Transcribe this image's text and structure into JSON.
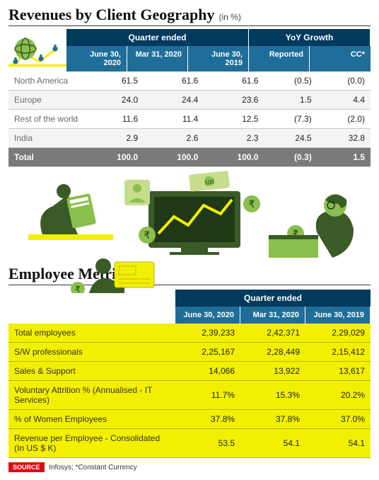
{
  "revenues": {
    "title": "Revenues by Client Geography",
    "unit": "(in %)",
    "header_group_quarter": "Quarter ended",
    "header_group_yoy": "YoY Growth",
    "cols": [
      "June 30, 2020",
      "Mar 31, 2020",
      "June 30, 2019",
      "Reported",
      "CC*"
    ],
    "rows": [
      {
        "label": "North America",
        "vals": [
          "61.5",
          "61.6",
          "61.6",
          "(0.5)",
          "(0.0)"
        ]
      },
      {
        "label": "Europe",
        "vals": [
          "24.0",
          "24.4",
          "23.6",
          "1.5",
          "4.4"
        ]
      },
      {
        "label": "Rest of the world",
        "vals": [
          "11.6",
          "11.4",
          "12.5",
          "(7.3)",
          "(2.0)"
        ]
      },
      {
        "label": "India",
        "vals": [
          "2.9",
          "2.6",
          "2.3",
          "24.5",
          "32.8"
        ]
      }
    ],
    "total": {
      "label": "Total",
      "vals": [
        "100.0",
        "100.0",
        "100.0",
        "(0.3)",
        "1.5"
      ]
    }
  },
  "employees": {
    "title": "Employee Metrics",
    "header_group_quarter": "Quarter ended",
    "cols": [
      "June 30, 2020",
      "Mar 31, 2020",
      "June 30, 2019"
    ],
    "rows": [
      {
        "label": "Total employees",
        "vals": [
          "2,39,233",
          "2,42,371",
          "2,29,029"
        ]
      },
      {
        "label": "S/W professionals",
        "vals": [
          "2,25,167",
          "2,28,449",
          "2,15,412"
        ]
      },
      {
        "label": "Sales & Support",
        "vals": [
          "14,066",
          "13,922",
          "13,617"
        ]
      },
      {
        "label": "Voluntary Attrition % (Annualised - IT Services)",
        "vals": [
          "11.7%",
          "15.3%",
          "20.2%"
        ]
      },
      {
        "label": "% of Women Employees",
        "vals": [
          "37.8%",
          "37.8%",
          "37.0%"
        ]
      },
      {
        "label": "Revenue per Employee - Consolidated (In US $ K)",
        "vals": [
          "53.5",
          "54.1",
          "54.1"
        ]
      }
    ]
  },
  "footer": {
    "source_label": "SOURCE",
    "source_text": "Infosys; *Constant Currency"
  },
  "style": {
    "header_dark": "#003a5d",
    "header_light": "#1f6d99",
    "yellow": "#f3ef00",
    "total_grey": "#7a7a7a",
    "green_dark": "#3a5a28",
    "green_mid": "#8bbf4d",
    "green_light": "#c7dd8e"
  }
}
